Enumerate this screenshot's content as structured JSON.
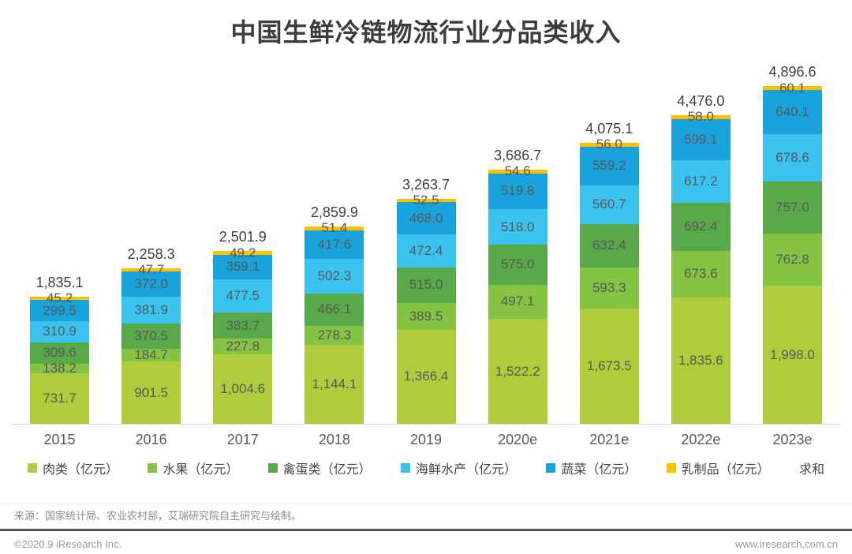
{
  "title": "中国生鲜冷链物流行业分品类收入",
  "chart_data": {
    "type": "bar",
    "stacked": true,
    "title": "中国生鲜冷链物流行业分品类收入",
    "xlabel": "",
    "ylabel": "",
    "ylim": [
      0,
      5000
    ],
    "grid": false,
    "legend_position": "bottom",
    "categories": [
      "2015",
      "2016",
      "2017",
      "2018",
      "2019",
      "2020e",
      "2021e",
      "2022e",
      "2023e"
    ],
    "series": [
      {
        "name": "肉类（亿元）",
        "color": "#b0cc3b",
        "values": [
          731.7,
          901.5,
          1004.6,
          1144.1,
          1366.4,
          1522.2,
          1673.5,
          1835.6,
          1998.0
        ]
      },
      {
        "name": "水果（亿元）",
        "color": "#85c342",
        "values": [
          138.2,
          184.7,
          227.8,
          278.3,
          389.5,
          497.1,
          593.3,
          673.6,
          762.8
        ]
      },
      {
        "name": "禽蛋类（亿元）",
        "color": "#58a94a",
        "values": [
          309.6,
          370.5,
          383.7,
          466.1,
          515.0,
          575.0,
          632.4,
          692.4,
          757.0
        ]
      },
      {
        "name": "海鲜水产（亿元）",
        "color": "#3bc3f0",
        "values": [
          310.9,
          381.9,
          477.5,
          502.3,
          472.4,
          518.0,
          560.7,
          617.2,
          678.6
        ]
      },
      {
        "name": "蔬菜（亿元）",
        "color": "#18a3dd",
        "values": [
          299.5,
          372.0,
          359.1,
          417.6,
          468.0,
          519.8,
          559.2,
          599.1,
          640.1
        ]
      },
      {
        "name": "乳制品（亿元）",
        "color": "#ffc000",
        "values": [
          45.2,
          47.7,
          49.2,
          51.4,
          52.5,
          54.6,
          56.0,
          58.0,
          60.1
        ]
      }
    ],
    "totals": [
      1835.1,
      2258.3,
      2501.9,
      2859.9,
      3263.7,
      3686.7,
      4075.1,
      4476.0,
      4896.6
    ],
    "totals_label": "求和"
  },
  "footer": {
    "source": "来源：国家统计局、农业农村部，艾瑞研究院自主研究与绘制。",
    "copyright": "©2020.9 iResearch Inc.",
    "website": "www.iresearch.com.cn"
  }
}
